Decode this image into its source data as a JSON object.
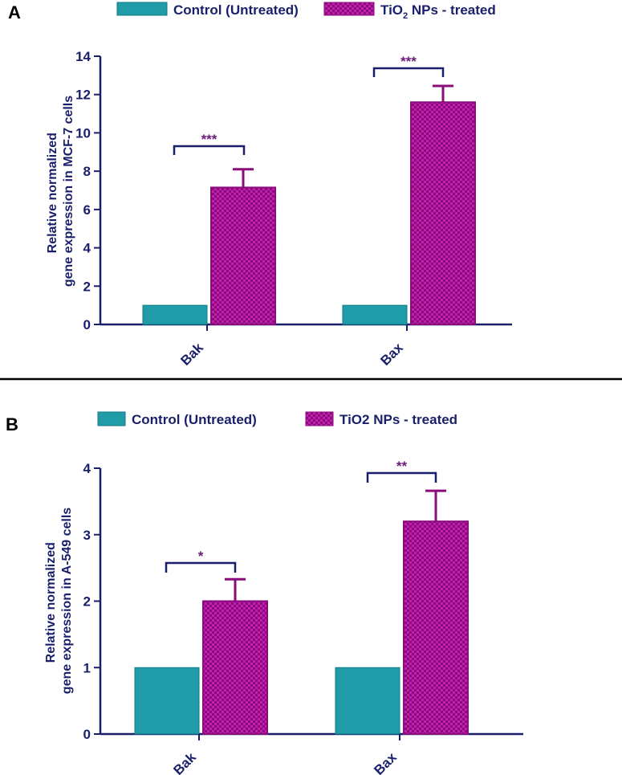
{
  "chart_data": [
    {
      "type": "bar",
      "panel_label": "A",
      "legend": [
        {
          "name_main": "Control (Untreated)",
          "name_sub": "",
          "name_tail": "",
          "pattern": "solid"
        },
        {
          "name_main": "TiO",
          "name_sub": "2",
          "name_tail": " NPs - treated",
          "pattern": "checker"
        }
      ],
      "categories": [
        "Bak",
        "Bax"
      ],
      "series": [
        {
          "name": "Control (Untreated)",
          "values": [
            1,
            1
          ],
          "errors": [
            0,
            0
          ]
        },
        {
          "name": "TiO2 NPs - treated",
          "values": [
            7.15,
            11.6
          ],
          "errors": [
            0.95,
            0.85
          ]
        }
      ],
      "significance": [
        "***",
        "***"
      ],
      "ylabel_lines": [
        "Relative normalized",
        "gene expression in MCF-7 cells"
      ],
      "xlabel": "",
      "ylim": [
        0,
        14
      ],
      "yticks": [
        0,
        2,
        4,
        6,
        8,
        10,
        12,
        14
      ]
    },
    {
      "type": "bar",
      "panel_label": "B",
      "legend": [
        {
          "name_main": "Control (Untreated)",
          "name_sub": "",
          "name_tail": "",
          "pattern": "solid"
        },
        {
          "name_main": "TiO2 NPs - treated",
          "name_sub": "",
          "name_tail": "",
          "pattern": "checker"
        }
      ],
      "categories": [
        "Bak",
        "Bax"
      ],
      "series": [
        {
          "name": "Control (Untreated)",
          "values": [
            1,
            1
          ],
          "errors": [
            0,
            0
          ]
        },
        {
          "name": "TiO2 NPs - treated",
          "values": [
            2.0,
            3.2
          ],
          "errors": [
            0.33,
            0.46
          ]
        }
      ],
      "significance": [
        "*",
        "**"
      ],
      "ylabel_lines": [
        "Relative normalized",
        "gene expression in A-549 cells"
      ],
      "xlabel": "",
      "ylim": [
        0,
        4
      ],
      "yticks": [
        0,
        1,
        2,
        3,
        4
      ]
    }
  ],
  "colors": {
    "control": "#1f9ca8",
    "control_edge": "#137a84",
    "treated": "#c21fae",
    "treated_dark": "#8a0b7b",
    "axis": "#1a1f6b",
    "significance": "#6a1b7a",
    "divider": "#000000"
  }
}
